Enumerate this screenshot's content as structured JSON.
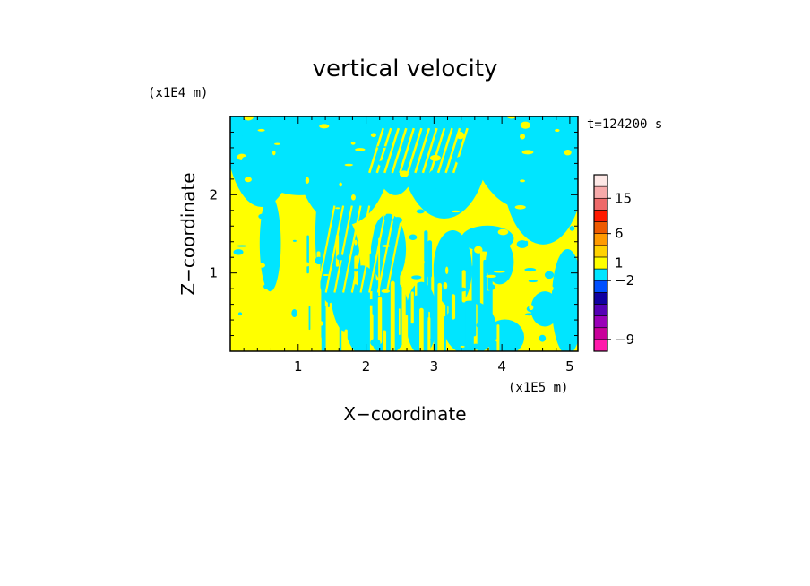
{
  "chart_data": {
    "type": "heatmap",
    "title": "vertical velocity",
    "xlabel": "X−coordinate",
    "ylabel": "Z−coordinate",
    "x_scale_label": "(x1E5 m)",
    "y_scale_label": "(x1E4 m)",
    "time_label": "t=124200 s",
    "xlim": [
      0,
      5.12
    ],
    "ylim": [
      0,
      3.0
    ],
    "x_ticks": [
      1,
      2,
      3,
      4,
      5
    ],
    "x_tick_labels": [
      "1",
      "2",
      "3",
      "4",
      "5"
    ],
    "y_ticks": [
      1,
      2
    ],
    "y_tick_labels": [
      "1",
      "2"
    ],
    "field_colors": {
      "positive": "#ffff00",
      "negative": "#00e5ff"
    },
    "colorbar": {
      "levels": [
        {
          "color": "#ff1aab"
        },
        {
          "color": "#c8009a"
        },
        {
          "color": "#9a00b8"
        },
        {
          "color": "#5500b5"
        },
        {
          "color": "#1000a0"
        },
        {
          "color": "#0050ff"
        },
        {
          "color": "#00e5ff"
        },
        {
          "color": "#ffff00"
        },
        {
          "color": "#ffd200"
        },
        {
          "color": "#ff9a00"
        },
        {
          "color": "#ee5a00"
        },
        {
          "color": "#ff1a00"
        },
        {
          "color": "#ee6a6a"
        },
        {
          "color": "#f6aaaa"
        },
        {
          "color": "#fde8e6"
        }
      ],
      "labels": [
        {
          "text": "15",
          "at_level": 13
        },
        {
          "text": "6",
          "at_level": 10
        },
        {
          "text": "1",
          "at_level": 7.5
        },
        {
          "text": "−2",
          "at_level": 6
        },
        {
          "text": "−9",
          "at_level": 1
        }
      ]
    }
  }
}
